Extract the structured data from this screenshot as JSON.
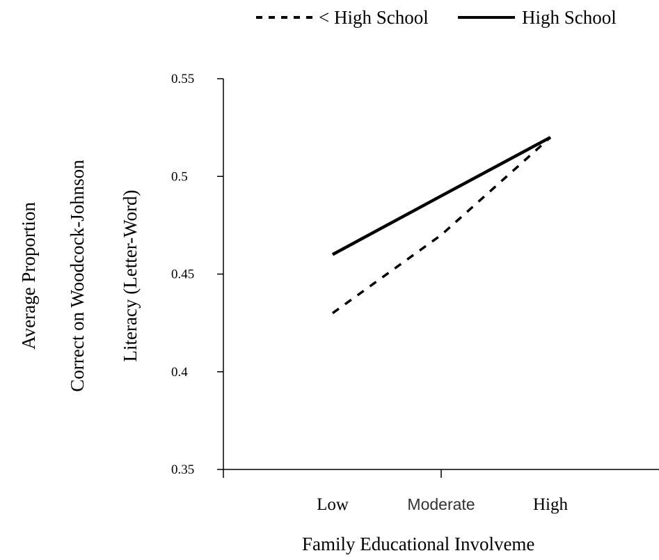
{
  "chart_data": {
    "type": "line",
    "title": "",
    "categories": [
      "Low",
      "Moderate",
      "High"
    ],
    "series": [
      {
        "name": "< High School",
        "values": [
          0.43,
          0.47,
          0.52
        ],
        "style": "dashed",
        "color": "#000000"
      },
      {
        "name": "High School",
        "values": [
          0.46,
          0.49,
          0.52
        ],
        "style": "solid",
        "color": "#000000"
      }
    ],
    "ylim": [
      0.35,
      0.55
    ],
    "yticks": [
      "0.35",
      "0.4",
      "0.45",
      "0.5",
      "0.55"
    ],
    "ylabel_lines": [
      "Average Proportion",
      "Correct on Woodcock-Johnson",
      "Literacy (Letter-Word)"
    ],
    "xlabel": "Family Educational Involveme",
    "legend_position": "top"
  }
}
